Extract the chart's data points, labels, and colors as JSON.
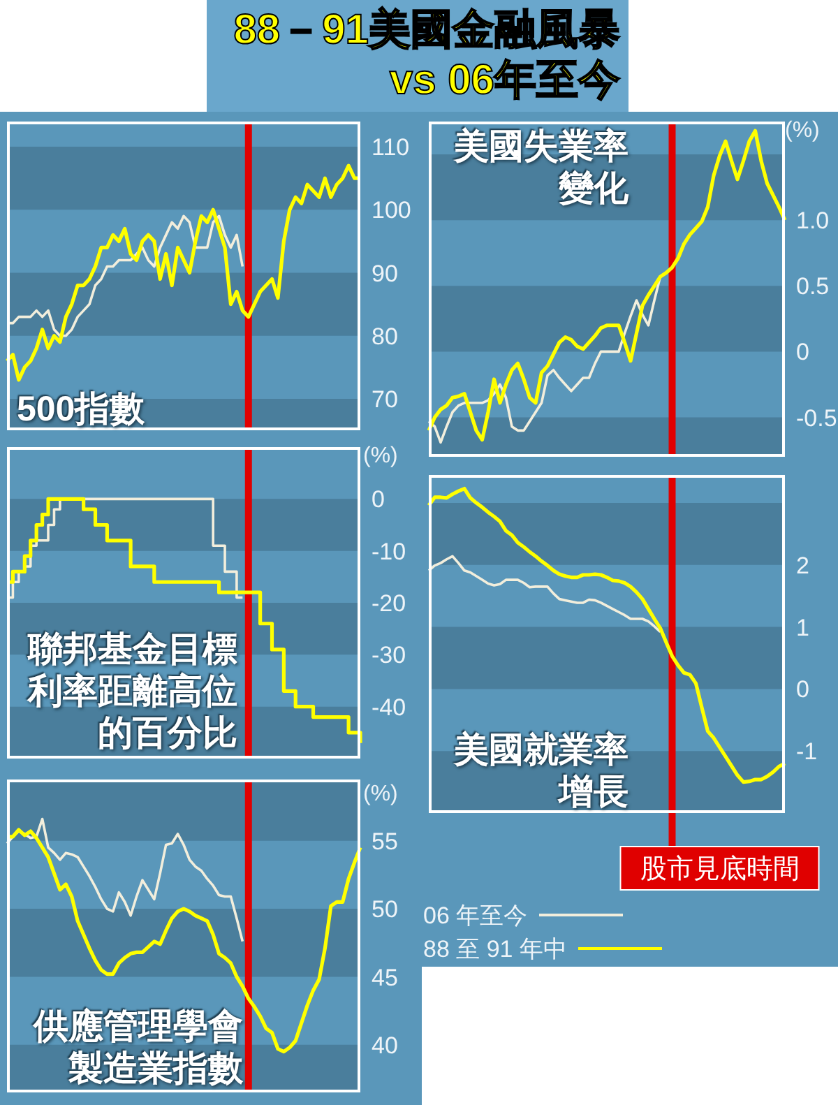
{
  "chart_data": [
    {
      "type": "line",
      "title": "500指數",
      "annotations": [
        "88－91美國金融風暴 vs 06年至今"
      ],
      "categories": [
        null,
        null,
        null,
        null,
        null,
        null,
        null,
        null,
        null,
        null,
        null,
        null,
        null,
        null,
        null,
        null,
        null,
        null,
        null,
        null,
        null,
        null,
        null,
        null,
        null,
        null,
        null,
        null,
        null,
        null,
        null,
        null,
        null,
        null,
        null,
        null,
        null,
        null,
        null,
        null,
        null,
        null,
        null,
        null,
        null,
        null,
        null,
        null,
        null,
        null,
        null,
        null,
        null,
        null,
        null,
        null,
        null,
        null,
        null,
        null,
        null
      ],
      "series": [
        {
          "color": "#f2eedc",
          "values": [
            82,
            82,
            83,
            83,
            83,
            84,
            83,
            84,
            81,
            80,
            80,
            81,
            83,
            84,
            85,
            88,
            89,
            91,
            91,
            92,
            92,
            92,
            93,
            94,
            92,
            91,
            94,
            96,
            98,
            97,
            99,
            98,
            94,
            94,
            94,
            98,
            99,
            96,
            94,
            96,
            91,
            null,
            null,
            null,
            null,
            null,
            null,
            null,
            null,
            null,
            null,
            null,
            null,
            null,
            null,
            null,
            null,
            null,
            null,
            null,
            null
          ]
        },
        {
          "color": "#ffff00",
          "values": [
            76,
            77,
            73,
            75,
            76,
            78,
            81,
            78,
            80,
            79,
            83,
            85,
            88,
            88,
            89,
            91,
            94,
            94,
            96,
            95,
            97,
            93,
            92,
            95,
            96,
            95,
            89,
            93,
            88,
            94,
            92,
            90,
            95,
            99,
            98,
            100,
            97,
            94,
            85,
            87,
            84,
            83,
            85,
            87,
            88,
            89,
            86,
            95,
            100,
            102,
            101,
            104,
            103,
            102,
            105,
            102,
            104,
            105,
            107,
            105,
            105
          ]
        }
      ],
      "ylim": [
        65,
        114
      ],
      "yticks": [
        70,
        80,
        90,
        100,
        110
      ],
      "bands": [
        {
          "axis": "y",
          "from": 100,
          "to": 110,
          "color": "#4a7e9c"
        },
        {
          "axis": "y",
          "from": 80,
          "to": 90,
          "color": "#4a7e9c"
        },
        {
          "axis": "y",
          "from": 65,
          "to": 70,
          "color": "#4a7e9c"
        }
      ]
    },
    {
      "type": "step",
      "title": "聯邦基金目標利率距離高位的百分比",
      "ylabel": "(%)",
      "categories": [
        null,
        null,
        null,
        null,
        null,
        null,
        null,
        null,
        null,
        null,
        null,
        null,
        null,
        null,
        null,
        null,
        null,
        null,
        null,
        null,
        null,
        null,
        null,
        null,
        null,
        null,
        null,
        null,
        null,
        null,
        null,
        null,
        null,
        null,
        null,
        null,
        null,
        null,
        null,
        null,
        null,
        null,
        null,
        null,
        null,
        null,
        null,
        null,
        null,
        null,
        null,
        null,
        null,
        null,
        null,
        null,
        null,
        null,
        null,
        null,
        null
      ],
      "series": [
        {
          "color": "#f2eedc",
          "values": [
            -19,
            -16,
            -14,
            -13,
            -9,
            -8,
            -8,
            -5,
            -2,
            0,
            0,
            0,
            0,
            0,
            0,
            0,
            0,
            0,
            0,
            0,
            0,
            0,
            0,
            0,
            0,
            0,
            0,
            0,
            0,
            0,
            0,
            0,
            0,
            0,
            0,
            -9,
            -9,
            -14,
            -14,
            -19,
            -19,
            null,
            null,
            null,
            null,
            null,
            null,
            null,
            null,
            null,
            null,
            null,
            null,
            null,
            null,
            null,
            null,
            null,
            null,
            null,
            null
          ]
        },
        {
          "color": "#ffff00",
          "values": [
            -16,
            -14,
            -14,
            -11,
            -8,
            -5,
            -3,
            0,
            0,
            0,
            0,
            0,
            0,
            -2,
            -2,
            -5,
            -5,
            -8,
            -8,
            -8,
            -8,
            -13,
            -13,
            -13,
            -13,
            -16,
            -16,
            -16,
            -16,
            -16,
            -16,
            -16,
            -16,
            -16,
            -16,
            -16,
            -18,
            -18,
            -18,
            -18,
            -18,
            -18,
            -18,
            -24,
            -24,
            -29,
            -29,
            -37,
            -37,
            -40,
            -40,
            -40,
            -42,
            -42,
            -42,
            -42,
            -42,
            -42,
            -45,
            -45,
            -47
          ]
        }
      ],
      "ylim": [
        -50,
        10
      ],
      "yticks": [
        0,
        -10,
        -20,
        -30,
        -40
      ],
      "bands": [
        {
          "axis": "y",
          "from": -10,
          "to": 0,
          "color": "#4a7e9c"
        },
        {
          "axis": "y",
          "from": -30,
          "to": -20,
          "color": "#4a7e9c"
        },
        {
          "axis": "y",
          "from": -50,
          "to": -40,
          "color": "#4a7e9c"
        }
      ]
    },
    {
      "type": "line",
      "title": "供應管理學會製造業指數",
      "ylabel": "(%)",
      "categories": [
        null,
        null,
        null,
        null,
        null,
        null,
        null,
        null,
        null,
        null,
        null,
        null,
        null,
        null,
        null,
        null,
        null,
        null,
        null,
        null,
        null,
        null,
        null,
        null,
        null,
        null,
        null,
        null,
        null,
        null,
        null,
        null,
        null,
        null,
        null,
        null,
        null,
        null,
        null,
        null,
        null,
        null,
        null,
        null,
        null,
        null,
        null,
        null,
        null,
        null,
        null,
        null,
        null,
        null,
        null,
        null,
        null,
        null,
        null,
        null,
        null
      ],
      "series": [
        {
          "color": "#f2eedc",
          "values": [
            54.8,
            55.3,
            55.7,
            55.5,
            55.2,
            55.3,
            56.6,
            54.5,
            54.1,
            53.6,
            54.1,
            54,
            53.8,
            53.1,
            52.4,
            51.6,
            50.7,
            50,
            49.8,
            51.2,
            50.5,
            49.5,
            50.9,
            52.1,
            51.4,
            50.7,
            52.6,
            54.7,
            54.8,
            55.5,
            54.7,
            53.6,
            53.1,
            52.8,
            52.2,
            51.7,
            51,
            50.9,
            50.9,
            49.3,
            47.6,
            null,
            null,
            null,
            null,
            null,
            null,
            null,
            null,
            null,
            null,
            null,
            null,
            null,
            null,
            null,
            null,
            null,
            null,
            null,
            null
          ]
        },
        {
          "color": "#ffff00",
          "values": [
            55.3,
            55.3,
            55.8,
            55.4,
            55.7,
            55.2,
            54.5,
            53.8,
            52.6,
            51.4,
            51.8,
            50.9,
            49.1,
            48.1,
            47.1,
            46.2,
            45.5,
            45.2,
            45.2,
            46,
            46.4,
            46.7,
            46.8,
            46.8,
            47.2,
            47.6,
            47.4,
            48.4,
            49.3,
            49.8,
            50,
            49.8,
            49.5,
            49.3,
            49.1,
            48.1,
            46.7,
            46.4,
            46,
            45,
            44.3,
            43.4,
            42.8,
            42.1,
            41.2,
            40.9,
            39.7,
            39.5,
            39.8,
            40.3,
            41.6,
            42.9,
            44,
            44.8,
            47.1,
            50.2,
            50.5,
            50.5,
            52.2,
            53.4,
            54.5
          ]
        }
      ],
      "ylim": [
        36.5,
        59.5
      ],
      "yticks": [
        55,
        50,
        45,
        40
      ],
      "bands": [
        {
          "axis": "y",
          "from": 55,
          "to": 59.5,
          "color": "#4a7e9c"
        },
        {
          "axis": "y",
          "from": 45,
          "to": 50,
          "color": "#4a7e9c"
        },
        {
          "axis": "y",
          "from": 36.5,
          "to": 40,
          "color": "#4a7e9c"
        }
      ]
    },
    {
      "type": "line",
      "title": "美國失業率變化",
      "ylabel": "(%)",
      "categories": [
        null,
        null,
        null,
        null,
        null,
        null,
        null,
        null,
        null,
        null,
        null,
        null,
        null,
        null,
        null,
        null,
        null,
        null,
        null,
        null,
        null,
        null,
        null,
        null,
        null,
        null,
        null,
        null,
        null,
        null,
        null,
        null,
        null,
        null,
        null,
        null,
        null,
        null,
        null,
        null,
        null,
        null,
        null,
        null,
        null,
        null,
        null,
        null,
        null,
        null,
        null,
        null,
        null,
        null,
        null,
        null,
        null,
        null,
        null,
        null,
        null
      ],
      "series": [
        {
          "color": "#f2eedc",
          "values": [
            -0.53,
            -0.57,
            -0.69,
            -0.57,
            -0.46,
            -0.41,
            -0.39,
            -0.39,
            -0.39,
            -0.39,
            -0.37,
            -0.32,
            -0.25,
            -0.35,
            -0.57,
            -0.6,
            -0.6,
            -0.53,
            -0.46,
            -0.39,
            -0.18,
            -0.14,
            -0.2,
            -0.25,
            -0.3,
            -0.25,
            -0.2,
            -0.2,
            -0.09,
            0,
            0,
            0,
            0,
            0.14,
            0.27,
            0.39,
            0.28,
            0.2,
            0.39,
            0.57,
            null,
            null,
            null,
            null,
            null,
            null,
            null,
            null,
            null,
            null,
            null,
            null,
            null,
            null,
            null,
            null,
            null,
            null,
            null,
            null,
            null
          ]
        },
        {
          "color": "#ffff00",
          "values": [
            -0.6,
            -0.5,
            -0.44,
            -0.41,
            -0.35,
            -0.34,
            -0.32,
            -0.46,
            -0.6,
            -0.67,
            -0.46,
            -0.21,
            -0.39,
            -0.25,
            -0.14,
            -0.09,
            -0.21,
            -0.35,
            -0.39,
            -0.16,
            -0.11,
            -0.02,
            0.07,
            0.11,
            0.09,
            0.04,
            0.02,
            0.07,
            0.12,
            0.18,
            0.2,
            0.2,
            0.2,
            0.07,
            -0.07,
            0.14,
            0.35,
            0.43,
            0.5,
            0.57,
            0.6,
            0.64,
            0.71,
            0.82,
            0.89,
            0.94,
            0.99,
            1.1,
            1.34,
            1.49,
            1.6,
            1.45,
            1.31,
            1.45,
            1.6,
            1.68,
            1.45,
            1.28,
            1.19,
            1.1,
            1.0
          ]
        }
      ],
      "ylim": [
        -0.8,
        1.75
      ],
      "yticks": [
        {
          "value": 1,
          "label": "1.0"
        },
        0.5,
        0,
        -0.5
      ],
      "bands": [
        {
          "axis": "y",
          "from": 1,
          "to": 1.5,
          "color": "#4a7e9c"
        },
        {
          "axis": "y",
          "from": 0,
          "to": 0.5,
          "color": "#4a7e9c"
        },
        {
          "axis": "y",
          "from": -0.8,
          "to": -0.5,
          "color": "#4a7e9c"
        }
      ]
    },
    {
      "type": "line",
      "title": "美國就業率增長",
      "legend": "bottom",
      "categories": [
        null,
        null,
        null,
        null,
        null,
        null,
        null,
        null,
        null,
        null,
        null,
        null,
        null,
        null,
        null,
        null,
        null,
        null,
        null,
        null,
        null,
        null,
        null,
        null,
        null,
        null,
        null,
        null,
        null,
        null,
        null,
        null,
        null,
        null,
        null,
        null,
        null,
        null,
        null,
        null,
        null,
        null,
        null,
        null,
        null,
        null,
        null,
        null,
        null,
        null,
        null,
        null,
        null,
        null,
        null,
        null,
        null,
        null,
        null,
        null,
        null
      ],
      "series": [
        {
          "name": "06 年至今",
          "color": "#f2eedc",
          "values": [
            1.91,
            1.99,
            2.03,
            2.09,
            2.14,
            2.03,
            1.91,
            1.88,
            1.82,
            1.76,
            1.7,
            1.67,
            1.69,
            1.76,
            1.76,
            1.76,
            1.71,
            1.64,
            1.65,
            1.65,
            1.65,
            1.54,
            1.45,
            1.43,
            1.41,
            1.39,
            1.39,
            1.44,
            1.43,
            1.39,
            1.34,
            1.29,
            1.24,
            1.19,
            1.13,
            1.13,
            1.13,
            1.09,
            1.01,
            0.92,
            null,
            null,
            null,
            null,
            null,
            null,
            null,
            null,
            null,
            null,
            null,
            null,
            null,
            null,
            null,
            null,
            null,
            null,
            null,
            null,
            null
          ]
        },
        {
          "name": "88 至 91 年中",
          "color": "#ffff00",
          "values": [
            2.96,
            3.09,
            3.09,
            3.08,
            3.14,
            3.19,
            3.23,
            3.08,
            3.0,
            2.93,
            2.85,
            2.78,
            2.7,
            2.55,
            2.48,
            2.36,
            2.29,
            2.21,
            2.14,
            2.06,
            1.99,
            1.91,
            1.85,
            1.82,
            1.8,
            1.8,
            1.84,
            1.84,
            1.85,
            1.84,
            1.8,
            1.75,
            1.74,
            1.71,
            1.65,
            1.56,
            1.45,
            1.29,
            1.13,
            0.98,
            0.75,
            0.53,
            0.38,
            0.26,
            0.23,
            0.09,
            -0.3,
            -0.68,
            -0.79,
            -0.94,
            -1.09,
            -1.24,
            -1.39,
            -1.5,
            -1.49,
            -1.46,
            -1.46,
            -1.41,
            -1.34,
            -1.25,
            -1.2
          ]
        }
      ],
      "ylim": [
        -2,
        3.45
      ],
      "yticks": [
        2,
        1,
        0,
        -1
      ],
      "annotations": [
        "股市見底時間"
      ],
      "bands": [
        {
          "axis": "y",
          "from": 2,
          "to": 3,
          "color": "#4a7e9c"
        },
        {
          "axis": "y",
          "from": 0,
          "to": 1,
          "color": "#4a7e9c"
        },
        {
          "axis": "y",
          "from": -2,
          "to": -1,
          "color": "#4a7e9c"
        }
      ]
    }
  ]
}
